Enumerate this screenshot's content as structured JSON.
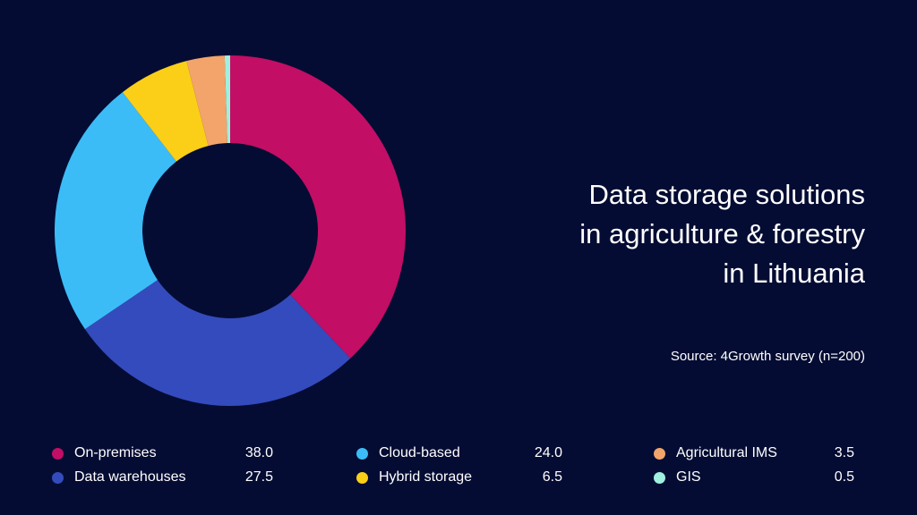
{
  "title_lines": [
    "Data storage solutions",
    "in agriculture & forestry",
    "in Lithuania"
  ],
  "source": "Source: 4Growth survey (n=200)",
  "chart_data": {
    "type": "pie",
    "donut": true,
    "title": "Data storage solutions in agriculture & forestry in Lithuania",
    "categories": [
      "On-premises",
      "Data warehouses",
      "Cloud-based",
      "Hybrid storage",
      "Agricultural IMS",
      "GIS"
    ],
    "values": [
      38.0,
      27.5,
      24.0,
      6.5,
      3.5,
      0.5
    ],
    "value_labels": [
      "38.0",
      "27.5",
      "24.0",
      "6.5",
      "3.5",
      "0.5"
    ],
    "colors": [
      "#c20e64",
      "#344bbd",
      "#3bbcf7",
      "#fbcf17",
      "#f3a46a",
      "#9ff0de"
    ],
    "legend": "bottom"
  }
}
